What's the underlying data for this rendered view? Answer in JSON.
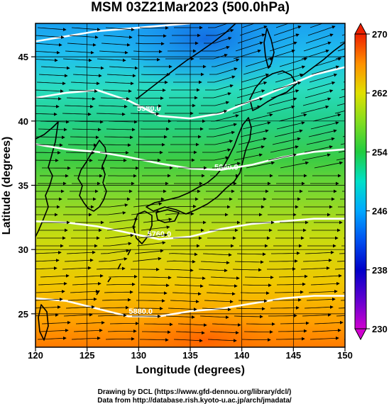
{
  "chart_data": {
    "type": "contour-map",
    "title": "MSM 03Z21Mar2023 (500.0hPa)",
    "xlabel": "Longitude (degrees)",
    "ylabel": "Latitude  (degrees)",
    "xlim": [
      120,
      150
    ],
    "ylim": [
      22.4,
      47.6
    ],
    "x_ticks": [
      120,
      125,
      130,
      135,
      140,
      145,
      150
    ],
    "y_ticks": [
      25,
      30,
      35,
      40,
      45
    ],
    "field": "temperature",
    "colorbar": {
      "min": 230,
      "max": 270,
      "ticks": [
        230,
        238,
        246,
        254,
        262,
        270
      ],
      "colors": [
        "#cc00cc",
        "#0000cc",
        "#0066ff",
        "#00c8ff",
        "#00e0b0",
        "#33cc33",
        "#99dd22",
        "#dddd00",
        "#ffaa00",
        "#ff5500",
        "#ee1100"
      ]
    },
    "contours": [
      {
        "label": "5880.0",
        "label_lon": 130.2,
        "label_lat": 25.0,
        "path": [
          [
            120,
            26.2
          ],
          [
            123,
            26.0
          ],
          [
            126,
            25.4
          ],
          [
            129,
            24.8
          ],
          [
            132,
            24.8
          ],
          [
            135,
            25.2
          ],
          [
            138,
            25.4
          ],
          [
            141,
            25.8
          ],
          [
            144,
            26.2
          ],
          [
            147,
            26.4
          ],
          [
            150,
            26.4
          ]
        ]
      },
      {
        "label": "5760.0",
        "label_lon": 132.0,
        "label_lat": 31.0,
        "path": [
          [
            120,
            32.2
          ],
          [
            123,
            32.1
          ],
          [
            126,
            31.8
          ],
          [
            129,
            31.3
          ],
          [
            132,
            30.8
          ],
          [
            135,
            31.0
          ],
          [
            138,
            31.6
          ],
          [
            141,
            32.0
          ],
          [
            144,
            32.2
          ],
          [
            147,
            32.4
          ],
          [
            150,
            32.4
          ]
        ]
      },
      {
        "label": "5640.0",
        "label_lon": 138.5,
        "label_lat": 36.2,
        "path": [
          [
            120,
            38.2
          ],
          [
            123,
            37.8
          ],
          [
            126,
            37.6
          ],
          [
            129,
            37.2
          ],
          [
            132,
            36.7
          ],
          [
            135,
            36.3
          ],
          [
            138,
            36.2
          ],
          [
            141,
            36.6
          ],
          [
            144,
            37.2
          ],
          [
            147,
            37.6
          ],
          [
            150,
            37.8
          ]
        ]
      },
      {
        "label": "5580.0",
        "label_lon": 131.0,
        "label_lat": 40.8,
        "path": [
          [
            120,
            41.8
          ],
          [
            123,
            42.2
          ],
          [
            126,
            42.4
          ],
          [
            129,
            41.6
          ],
          [
            132,
            40.4
          ],
          [
            135,
            40.2
          ],
          [
            138,
            40.6
          ],
          [
            141,
            41.6
          ],
          [
            144,
            42.6
          ],
          [
            147,
            43.6
          ],
          [
            150,
            44.2
          ]
        ]
      },
      {
        "label": "",
        "label_lon": 0,
        "label_lat": 0,
        "path": [
          [
            120,
            46.2
          ],
          [
            123,
            46.6
          ],
          [
            126,
            47.0
          ],
          [
            129,
            47.2
          ],
          [
            132,
            47.4
          ],
          [
            135,
            47.6
          ]
        ]
      }
    ]
  },
  "footer": {
    "line1": "Drawing by DCL (https://www.gfd-dennou.org/library/dcl/)",
    "line2": "Data from http://database.rish.kyoto-u.ac.jp/arch/jmadata/"
  }
}
